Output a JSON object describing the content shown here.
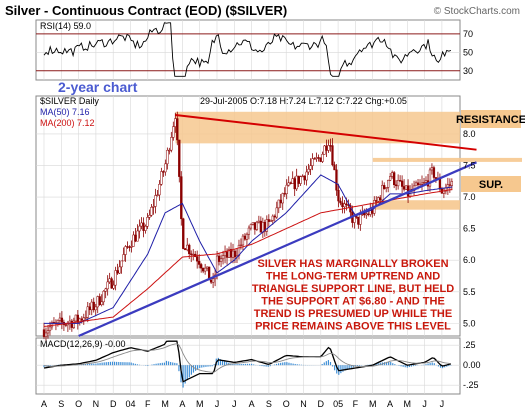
{
  "title": "Silver - Continuous Contract (EOD) ($SILVER)",
  "copyright": "© StockCharts.com",
  "chart_data": [
    {
      "type": "line",
      "panel": "RSI",
      "label": "RSI(14) 59.0",
      "ylim": [
        20,
        85
      ],
      "ticks": [
        "70",
        "50",
        "30"
      ],
      "overbought": 70,
      "oversold": 30
    },
    {
      "type": "candlestick",
      "panel": "price",
      "header_left": "$SILVER Daily",
      "header_right": "29-Jul-2005 O:7.18 H:7.24 L:7.12 C:7.22 Chg:+0.05",
      "badge": "2-year chart",
      "ma50_label": "MA(50) 7.16",
      "ma200_label": "MA(200) 7.12",
      "ylim": [
        4.8,
        8.6
      ],
      "yticks": [
        "8.0",
        "7.5",
        "7.0",
        "6.5",
        "6.0",
        "5.5",
        "5.0"
      ],
      "x_months": [
        "A",
        "S",
        "O",
        "N",
        "D",
        "04",
        "F",
        "M",
        "A",
        "M",
        "J",
        "J",
        "A",
        "S",
        "O",
        "N",
        "D",
        "05",
        "F",
        "M",
        "A",
        "M",
        "J",
        "J"
      ],
      "close_points": [
        [
          0,
          4.9
        ],
        [
          1,
          5.0
        ],
        [
          2,
          5.05
        ],
        [
          3,
          5.3
        ],
        [
          4,
          5.7
        ],
        [
          5,
          6.3
        ],
        [
          6,
          6.6
        ],
        [
          7,
          7.5
        ],
        [
          7.6,
          8.35
        ],
        [
          8,
          6.3
        ],
        [
          9,
          6.0
        ],
        [
          9.8,
          5.6
        ],
        [
          10,
          6.0
        ],
        [
          11,
          6.1
        ],
        [
          12,
          6.5
        ],
        [
          13,
          6.55
        ],
        [
          14,
          7.1
        ],
        [
          15,
          7.35
        ],
        [
          16,
          7.65
        ],
        [
          16.5,
          7.95
        ],
        [
          17,
          7.0
        ],
        [
          18,
          6.6
        ],
        [
          19,
          6.8
        ],
        [
          20,
          7.35
        ],
        [
          21,
          7.05
        ],
        [
          22,
          7.2
        ],
        [
          22.5,
          7.4
        ],
        [
          23,
          7.1
        ],
        [
          23.6,
          7.22
        ]
      ],
      "ma50_points": [
        [
          0,
          5.0
        ],
        [
          2,
          5.0
        ],
        [
          4,
          5.25
        ],
        [
          6,
          6.1
        ],
        [
          7,
          6.75
        ],
        [
          8,
          6.9
        ],
        [
          9,
          6.3
        ],
        [
          10,
          5.8
        ],
        [
          11,
          6.0
        ],
        [
          12,
          6.3
        ],
        [
          14,
          6.75
        ],
        [
          16,
          7.35
        ],
        [
          17,
          7.2
        ],
        [
          18,
          6.7
        ],
        [
          19,
          6.8
        ],
        [
          20,
          7.05
        ],
        [
          21,
          7.05
        ],
        [
          22,
          7.1
        ],
        [
          23.6,
          7.16
        ]
      ],
      "ma200_points": [
        [
          0,
          4.95
        ],
        [
          4,
          5.1
        ],
        [
          6,
          5.55
        ],
        [
          8,
          6.05
        ],
        [
          10,
          6.1
        ],
        [
          12,
          6.25
        ],
        [
          14,
          6.5
        ],
        [
          16,
          6.75
        ],
        [
          18,
          6.85
        ],
        [
          20,
          6.95
        ],
        [
          22,
          7.05
        ],
        [
          23.6,
          7.12
        ]
      ],
      "annotations": {
        "resistance_label": "RESISTANCE",
        "support_label": "SUP.",
        "note": "SILVER HAS MARGINALLY BROKEN THE LONG-TERM UPTREND AND TRIANGLE SUPPORT LINE, BUT HELD THE SUPPORT AT $6.80 - AND THE TREND IS PRESUMED UP WHILE THE PRICE REMAINS ABOVE THIS LEVEL"
      },
      "resistance_line": [
        [
          7.6,
          8.3
        ],
        [
          25,
          7.75
        ]
      ],
      "support_line": [
        [
          2,
          4.8
        ],
        [
          25,
          7.55
        ]
      ],
      "resistance_zone": [
        7.85,
        8.35
      ],
      "support_zone": [
        6.8,
        6.95
      ],
      "colors": {
        "candle": "#8b0000",
        "ma50": "#1f1fa8",
        "ma200": "#cc1111",
        "resistance_line": "#d40000",
        "support_line": "#3b3bbf",
        "zone": "#f6c88f",
        "note_text": "#c8180c"
      }
    },
    {
      "type": "line",
      "panel": "MACD",
      "label": "MACD(12,26,9) -0.00",
      "ylim": [
        -0.36,
        0.34
      ],
      "ticks": [
        ".25",
        "0.00",
        "-.25"
      ]
    }
  ]
}
